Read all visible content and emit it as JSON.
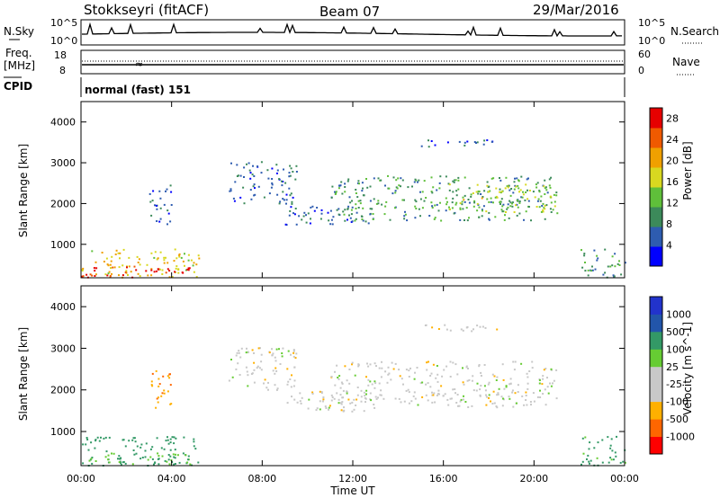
{
  "header": {
    "station": "Stokkseyri (fitACF)",
    "beam": "Beam 07",
    "date": "29/Mar/2016"
  },
  "noise_panel": {
    "left_label": "N.Sky",
    "right_label": "N.Search",
    "left_ticks": [
      "10^5",
      "10^0"
    ],
    "right_ticks": [
      "10^5",
      "10^0"
    ]
  },
  "freq_panel": {
    "left_label_1": "Freq.",
    "left_label_2": "[MHz]",
    "left_ticks": [
      "18",
      "8"
    ],
    "right_label": "Nave",
    "right_ticks": [
      "60",
      "0"
    ]
  },
  "cpid_panel": {
    "label": "CPID",
    "value": "normal (fast) 151"
  },
  "x_axis": {
    "label": "Time UT",
    "ticks": [
      "00:00",
      "04:00",
      "08:00",
      "12:00",
      "16:00",
      "20:00",
      "00:00"
    ]
  },
  "colors": {
    "power_scale": [
      "#0000ff",
      "#2e5cb0",
      "#3c8a5a",
      "#5fbf3a",
      "#d8d820",
      "#f0a000",
      "#f05a00",
      "#e60000"
    ],
    "velocity_scale": [
      "#ff0000",
      "#ff6600",
      "#ffb000",
      "#c8c8c8",
      "#c8c8c8",
      "#66cc33",
      "#339966",
      "#2255aa",
      "#2233cc"
    ]
  },
  "chart_data": [
    {
      "type": "heatmap",
      "title": "",
      "xlabel": "Time UT",
      "ylabel": "Slant Range [km]",
      "xlim": [
        0,
        24
      ],
      "ylim": [
        180,
        4500
      ],
      "y_ticks": [
        "1000",
        "2000",
        "3000",
        "4000"
      ],
      "colorbar": {
        "label": "Power [dB]",
        "ticks": [
          "4",
          "8",
          "12",
          "16",
          "20",
          "24",
          "28"
        ],
        "range": [
          0,
          30
        ]
      },
      "regions": [
        {
          "t0": 0.0,
          "t1": 5.2,
          "r0": 200,
          "r1": 900,
          "value": 18
        },
        {
          "t0": 0.0,
          "t1": 4.8,
          "r0": 200,
          "r1": 500,
          "value": 28
        },
        {
          "t0": 3.0,
          "t1": 4.0,
          "r0": 1500,
          "r1": 2500,
          "value": 6
        },
        {
          "t0": 6.5,
          "t1": 9.5,
          "r0": 2000,
          "r1": 3050,
          "value": 6
        },
        {
          "t0": 9.0,
          "t1": 13.0,
          "r0": 1500,
          "r1": 2000,
          "value": 7
        },
        {
          "t0": 11.0,
          "t1": 21.0,
          "r0": 1600,
          "r1": 2700,
          "value": 10
        },
        {
          "t0": 16.0,
          "t1": 21.0,
          "r0": 1800,
          "r1": 2500,
          "value": 15
        },
        {
          "t0": 15.0,
          "t1": 18.5,
          "r0": 3400,
          "r1": 3600,
          "value": 5
        },
        {
          "t0": 22.0,
          "t1": 24.0,
          "r0": 200,
          "r1": 900,
          "value": 10
        }
      ]
    },
    {
      "type": "heatmap",
      "title": "",
      "xlabel": "Time UT",
      "ylabel": "Slant Range [km]",
      "xlim": [
        0,
        24
      ],
      "ylim": [
        180,
        4500
      ],
      "y_ticks": [
        "1000",
        "2000",
        "3000",
        "4000"
      ],
      "colorbar": {
        "label": "Velocity [m s^-1]",
        "ticks": [
          "1000",
          "500",
          "100",
          "25",
          "-25",
          "-100",
          "-500",
          "-1000"
        ],
        "range": [
          -1000,
          1000
        ]
      },
      "regions": [
        {
          "t0": 0.0,
          "t1": 5.2,
          "r0": 200,
          "r1": 900,
          "value": 150
        },
        {
          "t0": 0.0,
          "t1": 4.8,
          "r0": 200,
          "r1": 500,
          "value": 80
        },
        {
          "t0": 3.0,
          "t1": 4.0,
          "r0": 1500,
          "r1": 2500,
          "value": -80
        },
        {
          "t0": 6.5,
          "t1": 9.5,
          "r0": 2000,
          "r1": 3050,
          "value": 0
        },
        {
          "t0": 9.0,
          "t1": 13.0,
          "r0": 1500,
          "r1": 2000,
          "value": 0
        },
        {
          "t0": 11.0,
          "t1": 21.0,
          "r0": 1600,
          "r1": 2700,
          "value": 0
        },
        {
          "t0": 15.0,
          "t1": 18.5,
          "r0": 3400,
          "r1": 3600,
          "value": 0
        },
        {
          "t0": 22.0,
          "t1": 24.0,
          "r0": 200,
          "r1": 900,
          "value": 120
        }
      ]
    }
  ]
}
